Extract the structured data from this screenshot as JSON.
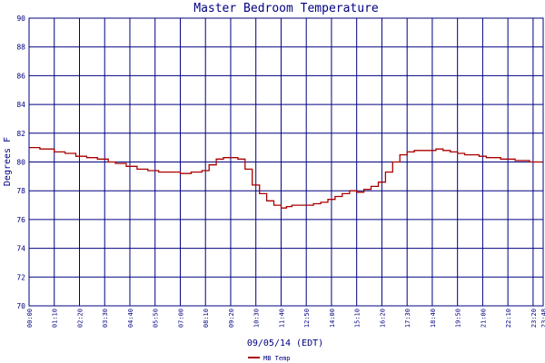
{
  "chart_data": {
    "type": "line",
    "title": "Master Bedroom Temperature",
    "xlabel": "09/05/14 (EDT)",
    "ylabel": "Degrees F",
    "ylim": [
      70,
      90
    ],
    "yticks": [
      "90",
      "88",
      "86",
      "84",
      "82",
      "80",
      "78",
      "76",
      "74",
      "72",
      "70"
    ],
    "xticks": [
      "00:00",
      "01:10",
      "02:20",
      "03:30",
      "04:40",
      "05:50",
      "07:00",
      "08:10",
      "09:20",
      "10:30",
      "11:40",
      "12:50",
      "14:00",
      "15:10",
      "16:20",
      "17:30",
      "18:40",
      "19:50",
      "21:00",
      "22:10",
      "23:20",
      "23:48"
    ],
    "grid": true,
    "legend_position": "bottom-left",
    "colors": {
      "axes": "#000080",
      "series": "#aa0000",
      "background": "#ffffff"
    },
    "series": [
      {
        "name": "MB Temp",
        "x": [
          "00:00",
          "00:30",
          "01:10",
          "01:40",
          "02:10",
          "02:40",
          "03:10",
          "03:40",
          "04:00",
          "04:30",
          "05:00",
          "05:30",
          "06:00",
          "06:30",
          "07:00",
          "07:30",
          "08:00",
          "08:20",
          "08:40",
          "09:00",
          "09:20",
          "09:40",
          "10:00",
          "10:20",
          "10:40",
          "11:00",
          "11:20",
          "11:40",
          "11:55",
          "12:10",
          "12:30",
          "12:50",
          "13:10",
          "13:30",
          "13:50",
          "14:10",
          "14:30",
          "14:50",
          "15:10",
          "15:30",
          "15:50",
          "16:10",
          "16:30",
          "16:50",
          "17:10",
          "17:30",
          "17:50",
          "18:10",
          "18:30",
          "18:50",
          "19:10",
          "19:30",
          "19:50",
          "20:10",
          "20:30",
          "20:50",
          "21:10",
          "21:30",
          "21:50",
          "22:10",
          "22:30",
          "22:50",
          "23:10",
          "23:30",
          "23:48"
        ],
        "values": [
          81.0,
          80.9,
          80.7,
          80.6,
          80.4,
          80.3,
          80.2,
          80.0,
          79.9,
          79.7,
          79.5,
          79.4,
          79.3,
          79.3,
          79.2,
          79.3,
          79.4,
          79.8,
          80.2,
          80.3,
          80.3,
          80.2,
          79.5,
          78.4,
          77.8,
          77.3,
          77.0,
          76.8,
          76.9,
          77.0,
          77.0,
          77.0,
          77.1,
          77.2,
          77.4,
          77.6,
          77.8,
          78.0,
          77.9,
          78.1,
          78.3,
          78.6,
          79.3,
          80.0,
          80.5,
          80.7,
          80.8,
          80.8,
          80.8,
          80.9,
          80.8,
          80.7,
          80.6,
          80.5,
          80.5,
          80.4,
          80.3,
          80.3,
          80.2,
          80.2,
          80.1,
          80.1,
          80.0,
          80.0,
          80.0
        ]
      }
    ]
  }
}
